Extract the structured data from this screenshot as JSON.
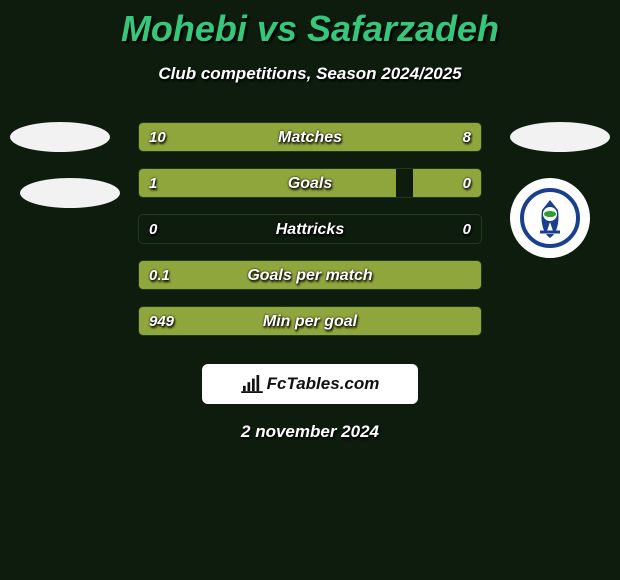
{
  "title": "Mohebi vs Safarzadeh",
  "subtitle": "Club competitions, Season 2024/2025",
  "date_text": "2 november 2024",
  "title_color": "#36c77a",
  "background_color": "#0e1c0e",
  "bar_fill_color": "#8fa63d",
  "bar_border_color": "#1d3a1d",
  "text_color": "#ffffff",
  "shadow_color": "#000000",
  "label_fontsize_pt": 12,
  "title_fontsize_pt": 27,
  "subtitle_fontsize_pt": 13,
  "player_left": {
    "name": "Mohebi",
    "avatar_top_color": "#f2f2f2",
    "avatar_bottom_color": "#f2f2f2"
  },
  "player_right": {
    "name": "Safarzadeh",
    "avatar_top_color": "#f2f2f2",
    "badge_colors": {
      "ring": "#1b3f8f",
      "inner": "#ffffff",
      "accent1": "#2ca02c",
      "accent2": "#1b3f8f"
    }
  },
  "stats": [
    {
      "label": "Matches",
      "left_value": "10",
      "right_value": "8",
      "left_fill_pct": 55,
      "right_fill_pct": 45
    },
    {
      "label": "Goals",
      "left_value": "1",
      "right_value": "0",
      "left_fill_pct": 75,
      "right_fill_pct": 20
    },
    {
      "label": "Hattricks",
      "left_value": "0",
      "right_value": "0",
      "left_fill_pct": 0,
      "right_fill_pct": 0
    },
    {
      "label": "Goals per match",
      "left_value": "0.1",
      "right_value": "",
      "left_fill_pct": 100,
      "right_fill_pct": 0
    },
    {
      "label": "Min per goal",
      "left_value": "949",
      "right_value": "",
      "left_fill_pct": 100,
      "right_fill_pct": 0
    }
  ],
  "footer_brand": "FcTables.com",
  "footer_bg_color": "#ffffff",
  "footer_text_color": "#111111"
}
